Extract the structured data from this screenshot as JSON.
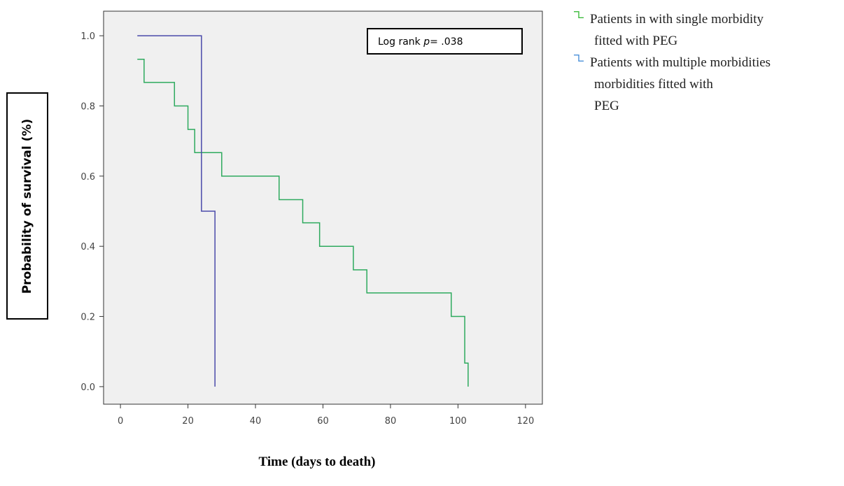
{
  "chart_data": {
    "type": "line",
    "xlabel": "Time (days to death)",
    "ylabel": "Probability of survival (%)",
    "xlim": [
      -5,
      125
    ],
    "ylim": [
      -0.05,
      1.07
    ],
    "xticks": [
      0,
      20,
      40,
      60,
      80,
      100,
      120
    ],
    "yticks": [
      0.0,
      0.2,
      0.4,
      0.6,
      0.8,
      1.0
    ],
    "ytick_labels": [
      "0.0",
      "0.2",
      "0.4",
      "0.6",
      "0.8",
      "1.0"
    ],
    "annotation": {
      "prefix": "Log rank ",
      "italic": "p",
      "suffix": "= .038"
    },
    "legend_position": "right",
    "series": [
      {
        "name": "Patients in with single morbidity fitted with PEG",
        "legend_lines": [
          "Patients in with single morbidity",
          "fitted with PEG"
        ],
        "color": "#2eaa5e",
        "legend_color": "#3cbb3c",
        "x": [
          5,
          7,
          16,
          20,
          22,
          30,
          47,
          54,
          59,
          69,
          73,
          98,
          102,
          103
        ],
        "y": [
          0.933,
          0.867,
          0.8,
          0.733,
          0.667,
          0.6,
          0.533,
          0.467,
          0.4,
          0.333,
          0.267,
          0.2,
          0.067,
          0.0
        ]
      },
      {
        "name": "Patients with multiple morbidities morbidities fitted with PEG",
        "legend_lines": [
          "Patients with multiple morbidities",
          "morbidities fitted with",
          "PEG"
        ],
        "color": "#4a4aaa",
        "legend_color": "#4a90d9",
        "x": [
          5,
          24,
          28
        ],
        "y": [
          1.0,
          0.5,
          0.0
        ]
      }
    ]
  }
}
